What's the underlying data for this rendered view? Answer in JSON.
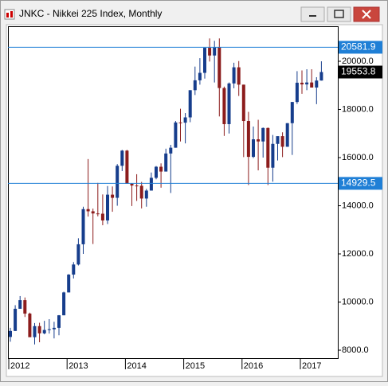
{
  "chart_data": {
    "type": "candlestick",
    "title": "JNKC - Nikkei 225 Index, Monthly",
    "categories": [
      "2012",
      null,
      null,
      null,
      null,
      null,
      null,
      null,
      null,
      null,
      null,
      null,
      "2013",
      null,
      null,
      null,
      null,
      null,
      null,
      null,
      null,
      null,
      null,
      null,
      "2014",
      null,
      null,
      null,
      null,
      null,
      null,
      null,
      null,
      null,
      null,
      null,
      "2015",
      null,
      null,
      null,
      null,
      null,
      null,
      null,
      null,
      null,
      null,
      null,
      "2016",
      null,
      null,
      null,
      null,
      null,
      null,
      null,
      null,
      null,
      null,
      null,
      "2017",
      null,
      null,
      null,
      null
    ],
    "open": [
      8550,
      8800,
      9720,
      10080,
      9520,
      8540,
      9000,
      8700,
      8840,
      8870,
      8930,
      9450,
      10400,
      11140,
      11560,
      12400,
      13860,
      13770,
      13680,
      13670,
      13390,
      14460,
      14330,
      15660,
      16290,
      14910,
      14840,
      14830,
      14300,
      14630,
      15160,
      15620,
      15420,
      16170,
      16410,
      17460,
      17450,
      17670,
      18800,
      19210,
      19520,
      20560,
      20240,
      20590,
      18890,
      17390,
      19080,
      19750,
      19030,
      17520,
      16030,
      16760,
      16670,
      17230,
      15580,
      16570,
      16890,
      16450,
      17430,
      18310,
      19110,
      19040,
      19120,
      18910,
      19200
    ],
    "high": [
      8930,
      9870,
      10250,
      10190,
      9560,
      9130,
      9140,
      9220,
      9290,
      9180,
      9460,
      10430,
      11160,
      11660,
      12650,
      13960,
      15940,
      13880,
      14950,
      14470,
      14820,
      14800,
      15730,
      16320,
      16320,
      14930,
      15310,
      14990,
      14700,
      15380,
      15650,
      15760,
      16370,
      16530,
      17520,
      18030,
      17850,
      18800,
      19780,
      20130,
      20560,
      20950,
      20850,
      20950,
      18950,
      19120,
      19940,
      20010,
      19030,
      17900,
      17290,
      17570,
      17250,
      17250,
      16940,
      16780,
      17050,
      17430,
      18310,
      19590,
      19620,
      19670,
      19670,
      19340,
      20000
    ],
    "low": [
      8350,
      8800,
      9720,
      9380,
      8550,
      8240,
      8330,
      8660,
      8690,
      8490,
      8620,
      9450,
      10400,
      10980,
      11520,
      12000,
      13550,
      12410,
      13560,
      13190,
      13240,
      13750,
      14000,
      15440,
      14910,
      13990,
      14200,
      13890,
      13960,
      14650,
      15100,
      14750,
      15420,
      14530,
      16410,
      16670,
      16590,
      17470,
      18600,
      19030,
      19280,
      19990,
      19120,
      17710,
      16900,
      17000,
      18880,
      18560,
      16020,
      14860,
      15980,
      15470,
      16000,
      14860,
      15000,
      15880,
      16020,
      16450,
      16110,
      18230,
      18650,
      18800,
      18980,
      18220,
      19200
    ],
    "close": [
      8800,
      9720,
      10080,
      9520,
      8540,
      9000,
      8700,
      8840,
      8870,
      8930,
      9450,
      10400,
      11140,
      11560,
      12400,
      13860,
      13770,
      13680,
      13670,
      13390,
      14460,
      14330,
      15660,
      16290,
      14910,
      14840,
      14830,
      14300,
      14630,
      15160,
      15620,
      15420,
      16170,
      16410,
      17460,
      17450,
      17670,
      18800,
      19210,
      19520,
      20560,
      20240,
      20590,
      18890,
      17390,
      19080,
      19750,
      19030,
      17520,
      16030,
      16760,
      16670,
      17230,
      15580,
      16570,
      16890,
      16450,
      17430,
      18310,
      19110,
      19040,
      19120,
      18910,
      19200,
      19553.8
    ],
    "up_color": "#163d8c",
    "down_color": "#8c1c1c",
    "lines": [
      20581.9,
      14929.5
    ],
    "line_color": "#1f7fd6",
    "last_price": 19553.8,
    "ylim": [
      7670,
      21455
    ],
    "yticks": [
      {
        "value": 8000,
        "label": "8000.0"
      },
      {
        "value": 10000,
        "label": "10000.0"
      },
      {
        "value": 12000,
        "label": "12000.0"
      },
      {
        "value": 14000,
        "label": "14000.0"
      },
      {
        "value": 16000,
        "label": "16000.0"
      },
      {
        "value": 18000,
        "label": "18000.0"
      },
      {
        "value": 20000,
        "label": "20000.0"
      }
    ]
  }
}
